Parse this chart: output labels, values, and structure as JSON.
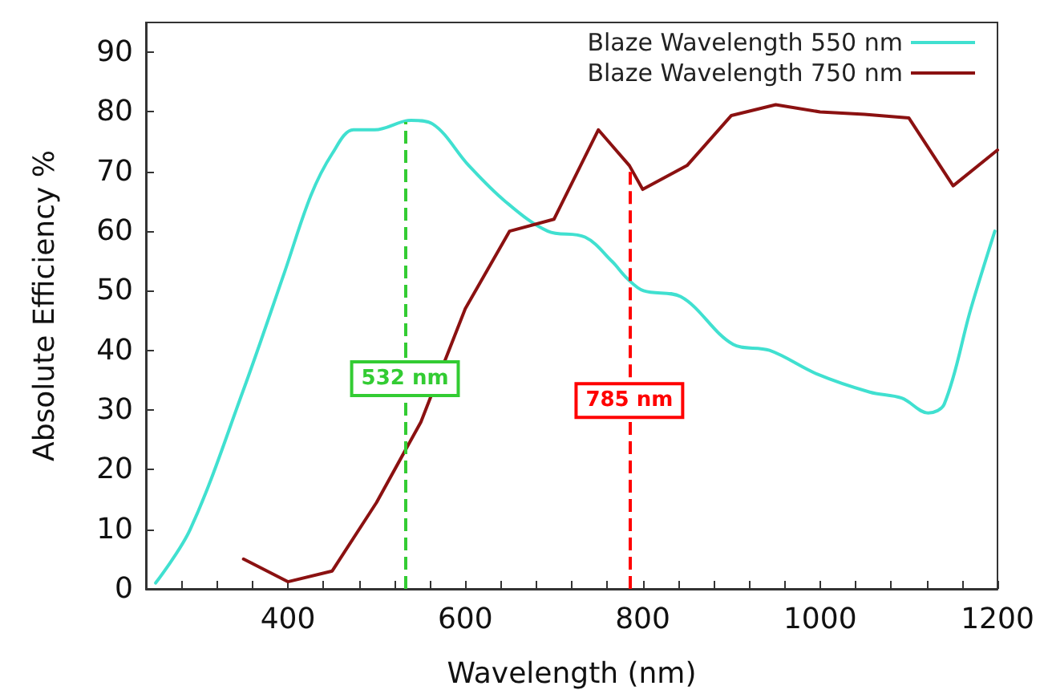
{
  "chart_data": {
    "type": "line",
    "xlabel": "Wavelength (nm)",
    "ylabel": "Absolute Efficiency %",
    "xlim": [
      240,
      1200
    ],
    "xticks": [
      {
        "value": 240,
        "label": null
      },
      {
        "value": 280,
        "label": null
      },
      {
        "value": 320,
        "label": null
      },
      {
        "value": 360,
        "label": null
      },
      400,
      {
        "value": 440,
        "label": null
      },
      {
        "value": 480,
        "label": null
      },
      {
        "value": 520,
        "label": null
      },
      {
        "value": 560,
        "label": null
      },
      600,
      {
        "value": 640,
        "label": null
      },
      {
        "value": 680,
        "label": null
      },
      {
        "value": 720,
        "label": null
      },
      {
        "value": 760,
        "label": null
      },
      800,
      {
        "value": 840,
        "label": null
      },
      {
        "value": 880,
        "label": null
      },
      {
        "value": 920,
        "label": null
      },
      {
        "value": 960,
        "label": null
      },
      1000,
      {
        "value": 1040,
        "label": null
      },
      {
        "value": 1080,
        "label": null
      },
      {
        "value": 1120,
        "label": null
      },
      {
        "value": 1160,
        "label": null
      },
      1200
    ],
    "ylim": [
      0,
      95
    ],
    "yticks": [
      0,
      10,
      20,
      30,
      40,
      50,
      60,
      70,
      80,
      90
    ],
    "grid": false,
    "legend": "top right",
    "marker": "none",
    "series": [
      {
        "name": "Blaze Wavelength 550 nm",
        "color": "#40e0d0",
        "x": [
          251,
          290,
          349,
          396,
          426,
          450,
          474,
          498,
          539,
          563,
          604,
          645,
          693,
          735,
          765,
          783,
          801,
          843,
          902,
          943,
          997,
          1056,
          1092,
          1122,
          1140,
          1170,
          1197
        ],
        "values": [
          1,
          10,
          33,
          53,
          66,
          73,
          77,
          77,
          78.6,
          78,
          71,
          65,
          60,
          59,
          55,
          52,
          50,
          49,
          41,
          40,
          36,
          33,
          32,
          29.5,
          31,
          47,
          60
        ]
      },
      {
        "name": "Blaze Wavelength 750 nm",
        "color": "#8b1111",
        "x": [
          350,
          400,
          450,
          500,
          550,
          600,
          650,
          700,
          750,
          785,
          800,
          850,
          900,
          950,
          1000,
          1050,
          1100,
          1150,
          1200
        ],
        "values": [
          5,
          1.2,
          3,
          14.5,
          28,
          47,
          60,
          62,
          77,
          71,
          67,
          71,
          79.4,
          81.2,
          80,
          79.6,
          79,
          67.6,
          73.6
        ]
      }
    ],
    "ref_lines": [
      {
        "axis": "x",
        "value": 532,
        "label": "532 nm",
        "color": "#33cc33",
        "line_style": "dashed"
      },
      {
        "axis": "x",
        "value": 785,
        "label": "785 nm",
        "color": "#ff0000",
        "line_style": "dashed"
      }
    ]
  }
}
